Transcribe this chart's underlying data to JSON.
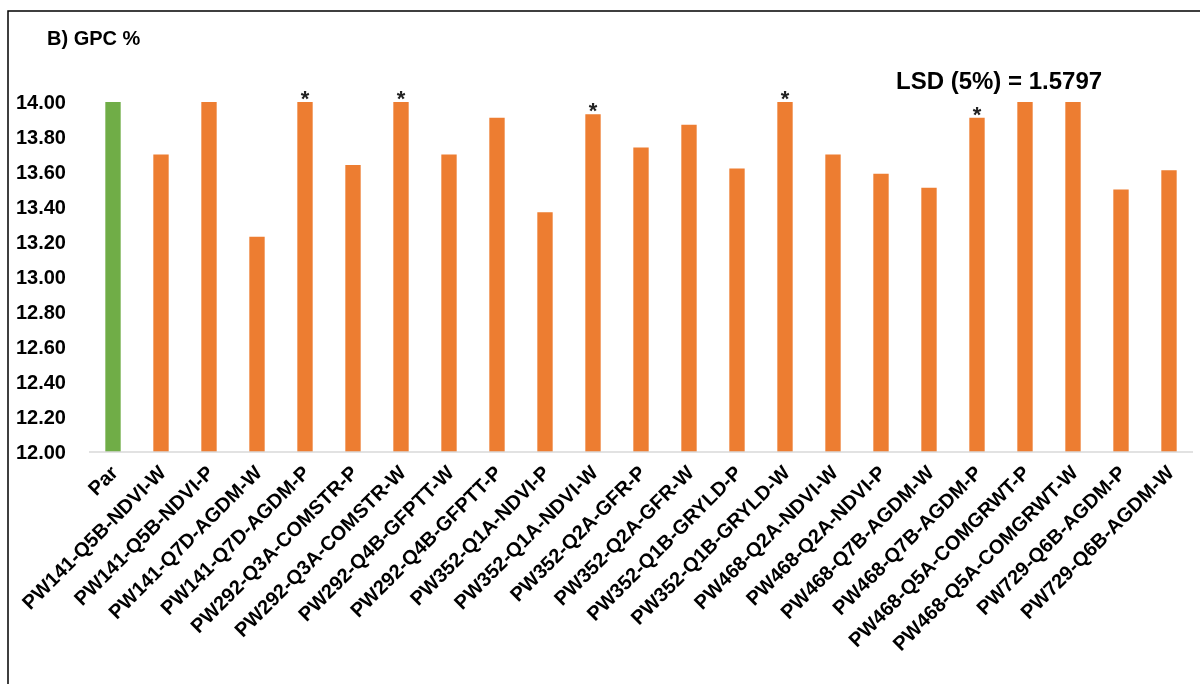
{
  "chart_data": {
    "type": "bar",
    "title": "B) GPC %",
    "categories": [
      "Par",
      "PW141-Q5B-NDVI-W",
      "PW141-Q5B-NDVI-P",
      "PW141-Q7D-AGDM-W",
      "PW141-Q7D-AGDM-P",
      "PW292-Q3A-COMSTR-P",
      "PW292-Q3A-COMSTR-W",
      "PW292-Q4B-GFPTT-W",
      "PW292-Q4B-GFPTT-P",
      "PW352-Q1A-NDVI-P",
      "PW352-Q1A-NDVI-W",
      "PW352-Q2A-GFR-P",
      "PW352-Q2A-GFR-W",
      "PW352-Q1B-GRYLD-P",
      "PW352-Q1B-GRYLD-W",
      "PW468-Q2A-NDVI-W",
      "PW468-Q2A-NDVI-P",
      "PW468-Q7B-AGDM-W",
      "PW468-Q7B-AGDM-P",
      "PW468-Q5A-COMGRWT-P",
      "PW468-Q5A-COMGRWT-W",
      "PW729-Q6B-AGDM-P",
      "PW729-Q6B-AGDM-W"
    ],
    "values": [
      14.0,
      13.7,
      14.0,
      13.23,
      14.0,
      13.64,
      14.0,
      13.7,
      13.91,
      13.37,
      13.93,
      13.74,
      13.87,
      13.62,
      14.0,
      13.7,
      13.59,
      13.51,
      13.91,
      14.0,
      14.0,
      13.5,
      13.61
    ],
    "colors": [
      "#70ad47",
      "#ed7d31",
      "#ed7d31",
      "#ed7d31",
      "#ed7d31",
      "#ed7d31",
      "#ed7d31",
      "#ed7d31",
      "#ed7d31",
      "#ed7d31",
      "#ed7d31",
      "#ed7d31",
      "#ed7d31",
      "#ed7d31",
      "#ed7d31",
      "#ed7d31",
      "#ed7d31",
      "#ed7d31",
      "#ed7d31",
      "#ed7d31",
      "#ed7d31",
      "#ed7d31",
      "#ed7d31"
    ],
    "ylim": [
      12,
      14
    ],
    "yticks": [
      {
        "value": 12,
        "label": "12.00"
      },
      {
        "value": 12.2,
        "label": "12.20"
      },
      {
        "value": 12.4,
        "label": "12.40"
      },
      {
        "value": 12.6,
        "label": "12.60"
      },
      {
        "value": 12.8,
        "label": "12.80"
      },
      {
        "value": 13,
        "label": "13.00"
      },
      {
        "value": 13.2,
        "label": "13.20"
      },
      {
        "value": 13.4,
        "label": "13.40"
      },
      {
        "value": 13.6,
        "label": "13.60"
      },
      {
        "value": 13.8,
        "label": "13.80"
      },
      {
        "value": 14,
        "label": "14.00"
      }
    ],
    "annotations": [
      "LSD (5%) = 1.5797",
      {
        "text": "*",
        "x": "PW141-Q7D-AGDM-P",
        "y": 14.0
      },
      {
        "text": "*",
        "x": "PW292-Q3A-COMSTR-W",
        "y": 14.0
      },
      {
        "text": "*",
        "x": "PW352-Q1A-NDVI-W",
        "y": 13.93
      },
      {
        "text": "*",
        "x": "PW352-Q1B-GRYLD-W",
        "y": 14.0
      },
      {
        "text": "*",
        "x": "PW468-Q7B-AGDM-P",
        "y": 13.91
      }
    ]
  }
}
